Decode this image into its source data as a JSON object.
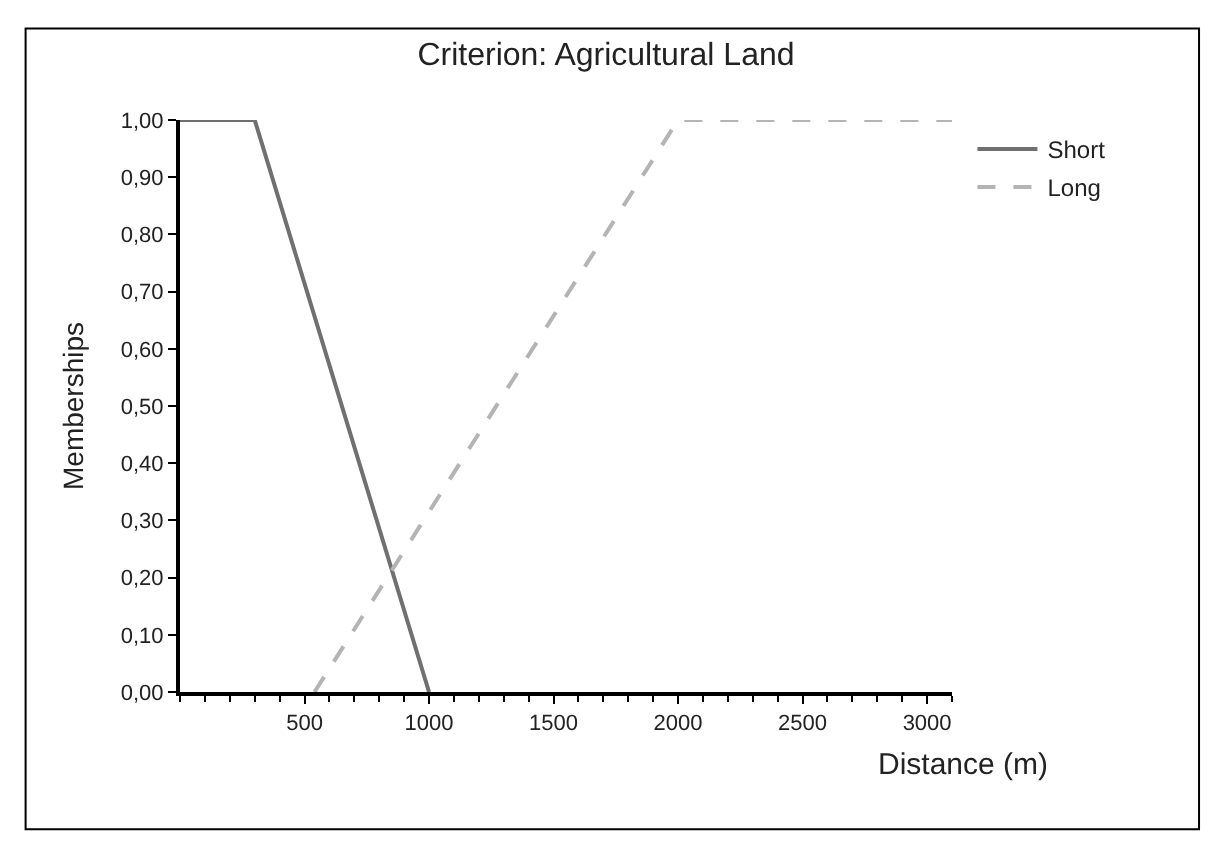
{
  "chart_data": {
    "type": "line",
    "title": "Criterion: Agricultural Land",
    "xlabel": "Distance (m)",
    "ylabel": "Memberships",
    "series": [
      {
        "name": "Short",
        "color": "#707070",
        "line_style": "solid",
        "x": [
          0,
          300,
          1000
        ],
        "values": [
          1,
          1,
          0
        ]
      },
      {
        "name": "Long",
        "color": "#b4b4b4",
        "line_style": "dashed",
        "x": [
          540,
          2000,
          3100
        ],
        "values": [
          0,
          1,
          1
        ]
      }
    ],
    "xlim": [
      0,
      3100
    ],
    "xticks": [
      500,
      1000,
      1500,
      2000,
      2500,
      3000
    ],
    "ylim": [
      0,
      1
    ],
    "yticks": [
      {
        "value": 0,
        "label": "0,00"
      },
      {
        "value": 0.1,
        "label": "0,10"
      },
      {
        "value": 0.2,
        "label": "0,20"
      },
      {
        "value": 0.3,
        "label": "0,30"
      },
      {
        "value": 0.4,
        "label": "0,40"
      },
      {
        "value": 0.5,
        "label": "0,50"
      },
      {
        "value": 0.6,
        "label": "0,60"
      },
      {
        "value": 0.7,
        "label": "0,70"
      },
      {
        "value": 0.8,
        "label": "0,80"
      },
      {
        "value": 0.9,
        "label": "0,90"
      },
      {
        "value": 1,
        "label": "1,00"
      }
    ],
    "legend": "top right",
    "marker": "none"
  }
}
